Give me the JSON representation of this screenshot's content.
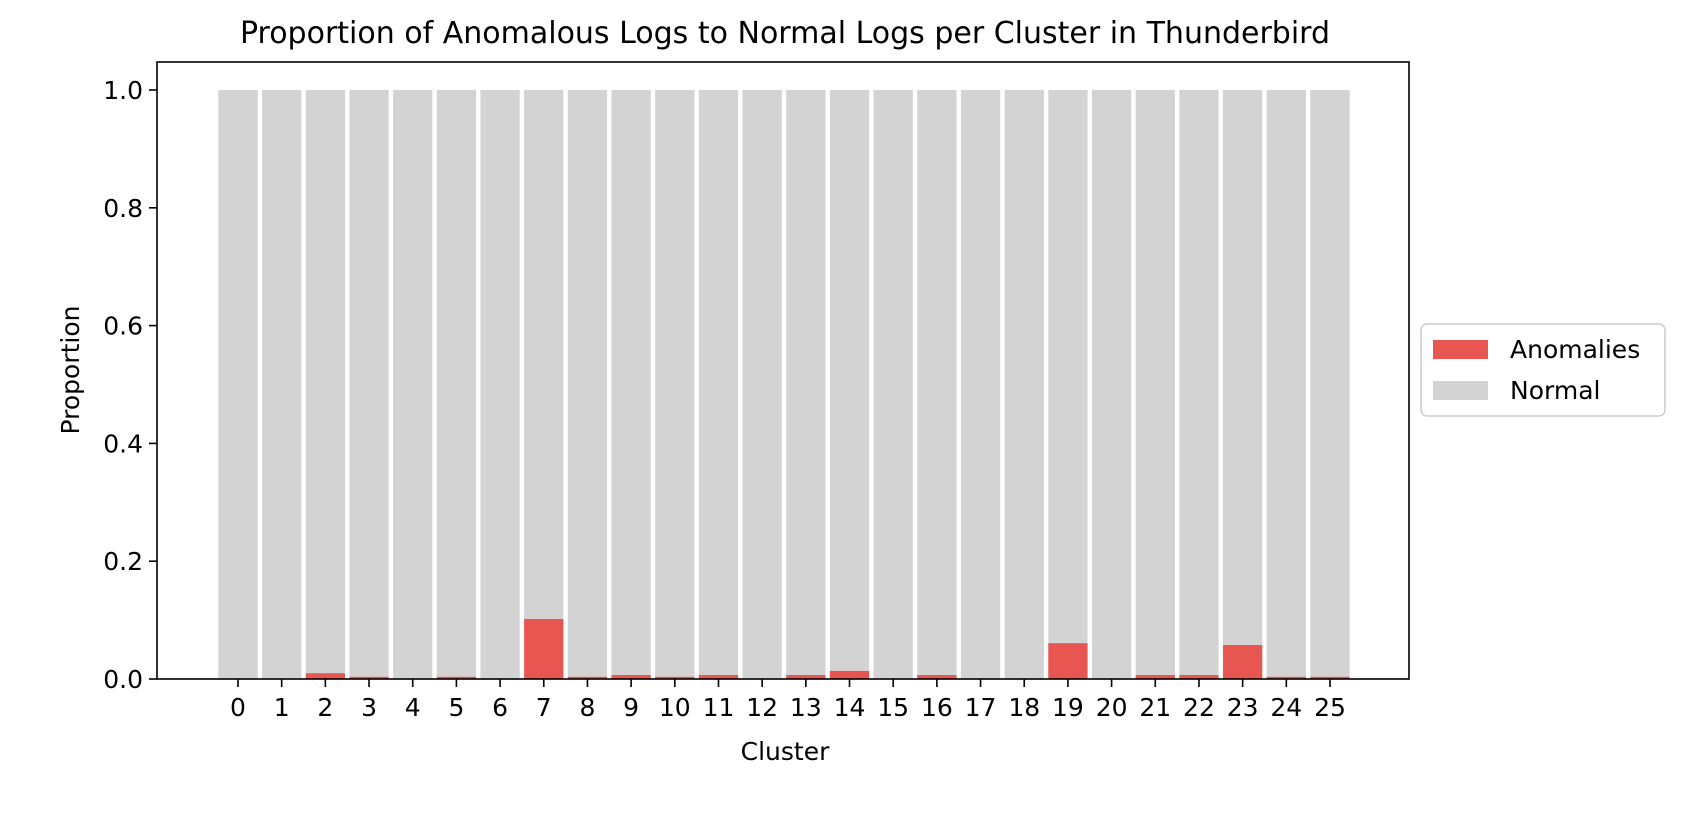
{
  "chart_data": {
    "type": "bar",
    "stacked": true,
    "title": "Proportion of Anomalous Logs to Normal Logs per Cluster in Thunderbird",
    "xlabel": "Cluster",
    "ylabel": "Proportion",
    "ylim": [
      0,
      1.05
    ],
    "yticks": [
      "0.0",
      "0.2",
      "0.4",
      "0.6",
      "0.8",
      "1.0"
    ],
    "categories": [
      "0",
      "1",
      "2",
      "3",
      "4",
      "5",
      "6",
      "7",
      "8",
      "9",
      "10",
      "11",
      "12",
      "13",
      "14",
      "15",
      "16",
      "17",
      "18",
      "19",
      "20",
      "21",
      "22",
      "23",
      "24",
      "25"
    ],
    "series": [
      {
        "name": "Anomalies",
        "color": "#e85651",
        "values": [
          0.0,
          0.0,
          0.01,
          0.004,
          0.0,
          0.004,
          0.0,
          0.102,
          0.004,
          0.007,
          0.004,
          0.007,
          0.0,
          0.007,
          0.014,
          0.0,
          0.007,
          0.0,
          0.0,
          0.061,
          0.0,
          0.007,
          0.007,
          0.058,
          0.004,
          0.004
        ]
      },
      {
        "name": "Normal",
        "color": "#d3d3d3",
        "values": [
          1.0,
          1.0,
          0.99,
          0.996,
          1.0,
          0.996,
          1.0,
          0.898,
          0.996,
          0.993,
          0.996,
          0.993,
          1.0,
          0.993,
          0.986,
          1.0,
          0.993,
          1.0,
          1.0,
          0.939,
          1.0,
          0.993,
          0.993,
          0.942,
          0.996,
          0.996
        ]
      }
    ],
    "grid": false,
    "legend": "center-right outside"
  }
}
